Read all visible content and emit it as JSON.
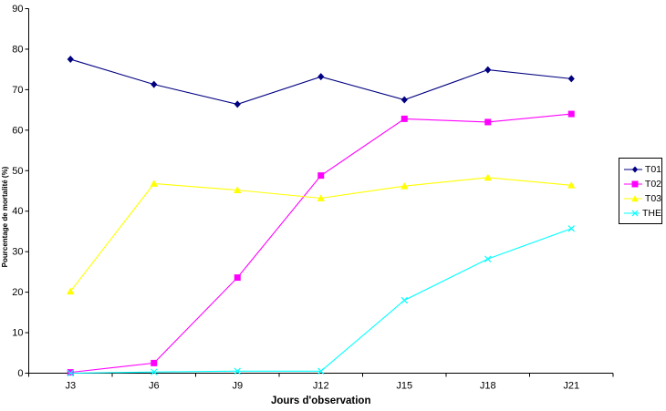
{
  "chart_data": {
    "type": "line",
    "title": "",
    "xlabel": "Jours d'observation",
    "ylabel": "Pourcentage de mortalité (%)",
    "categories": [
      "J3",
      "J6",
      "J9",
      "J12",
      "J15",
      "J18",
      "J21"
    ],
    "ylim": [
      0,
      90
    ],
    "ytick_step": 10,
    "grid": false,
    "legend_position": "right",
    "plot_background": "#ffffff",
    "axis_color": "#000000",
    "series": [
      {
        "name": "T01",
        "color": "#000080",
        "marker": "diamond",
        "values": [
          77.5,
          71.3,
          66.4,
          73.2,
          67.5,
          74.9,
          72.7
        ]
      },
      {
        "name": "T02",
        "color": "#FF00FF",
        "marker": "square",
        "values": [
          0.2,
          2.5,
          23.6,
          48.8,
          62.8,
          62.0,
          64.0
        ]
      },
      {
        "name": "T03",
        "color": "#FFFF00",
        "marker": "triangle",
        "values": [
          20.2,
          46.8,
          45.2,
          43.2,
          46.2,
          48.3,
          46.4
        ]
      },
      {
        "name": "THE",
        "color": "#00FFFF",
        "marker": "x",
        "values": [
          0.0,
          0.3,
          0.5,
          0.5,
          18.0,
          28.2,
          35.7
        ]
      }
    ]
  }
}
